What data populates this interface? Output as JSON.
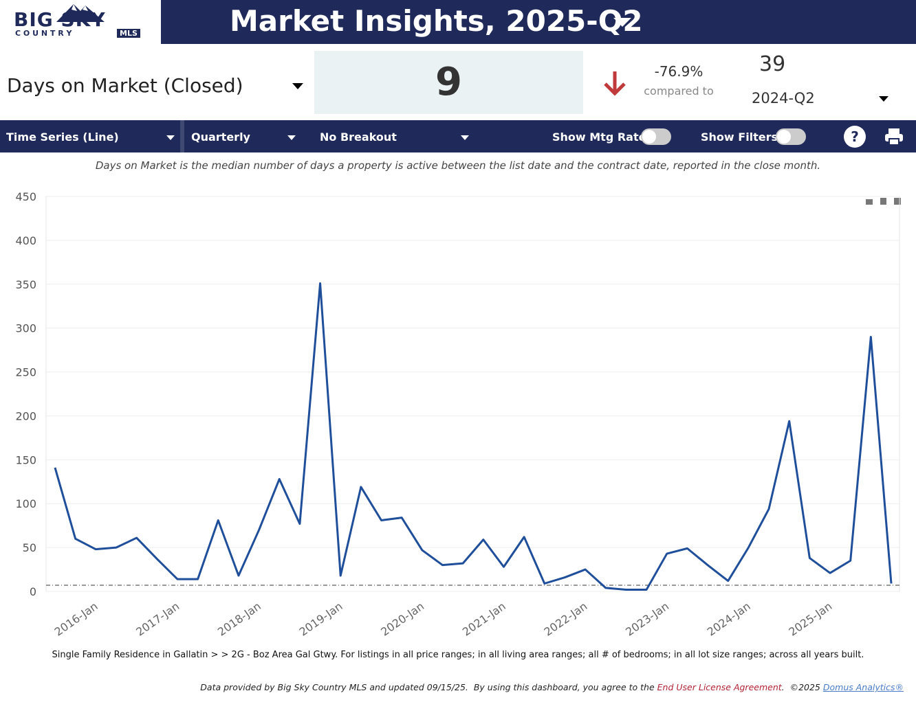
{
  "header": {
    "logo_big_sky": "BIG SKY",
    "logo_country": "C O U N T R Y",
    "logo_mls": "MLS",
    "title": "Market Insights, 2025-Q2"
  },
  "kpi": {
    "metric": "Days on Market (Closed)",
    "value": 9,
    "change": "-76.9%",
    "compared_label": "compared to",
    "compare_value": 39,
    "compare_period": "2024-Q2"
  },
  "toolbar": {
    "chart_type": "Time Series (Line)",
    "interval": "Quarterly",
    "breakout": "No Breakout",
    "mtg_rate": "Show Mtg Rate:",
    "filters": "Show Filters:"
  },
  "description": "Days on Market is the median number of days a property is active between the list date and the contract date, reported in the close month.",
  "chart_data": {
    "type": "line",
    "categories": [
      null,
      null,
      "2016-Jan",
      null,
      null,
      null,
      "2017-Jan",
      null,
      null,
      null,
      "2018-Jan",
      null,
      null,
      null,
      "2019-Jan",
      null,
      null,
      null,
      "2020-Jan",
      null,
      null,
      null,
      "2021-Jan",
      null,
      null,
      null,
      "2022-Jan",
      null,
      null,
      null,
      "2023-Jan",
      null,
      null,
      null,
      "2024-Jan",
      null,
      null,
      null,
      "2025-Jan",
      null,
      null,
      null
    ],
    "series": [
      {
        "name": "Days on Market",
        "color": "#1f4e9a",
        "values": [
          141,
          60,
          48,
          50,
          61,
          37,
          14,
          14,
          81,
          18,
          70,
          128,
          77,
          351,
          18,
          119,
          81,
          84,
          47,
          30,
          32,
          59,
          28,
          62,
          9,
          16,
          25,
          4,
          2,
          2,
          43,
          49,
          30,
          12,
          50,
          94,
          194,
          38,
          21,
          35,
          290,
          9
        ]
      }
    ],
    "reference_value": 7,
    "ylim": [
      0,
      450
    ],
    "yticks": [
      0,
      50,
      100,
      150,
      200,
      250,
      300,
      350,
      400,
      450
    ],
    "grid": true
  },
  "footnote": "Single Family Residence in Gallatin > > 2G - Boz Area Gal Gtwy. For listings in all price ranges; in all living area ranges; all # of bedrooms; in all lot size ranges; across all years built.",
  "credits": {
    "text": "Data provided by Big Sky Country MLS and updated 09/15/25.  By using this dashboard, you agree to the",
    "eula": "End User License Agreement",
    "copyright": ".  ©2025",
    "vendor": "Domus Analytics®"
  }
}
